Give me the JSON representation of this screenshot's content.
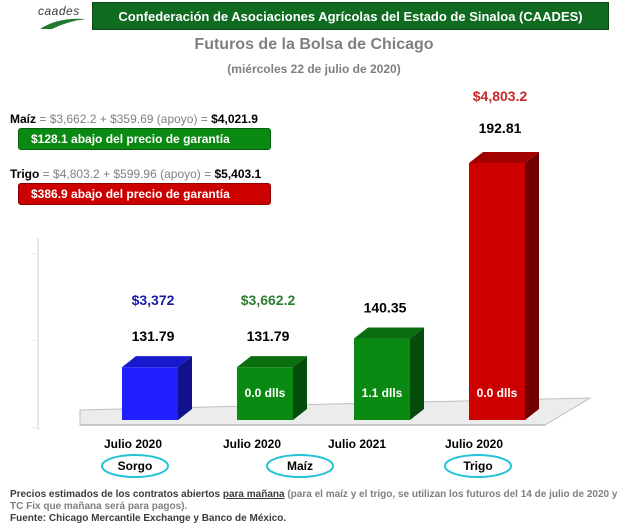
{
  "logo": {
    "text": "caades",
    "icon": "corn-leaf-icon"
  },
  "header": {
    "title": "Confederación de Asociaciones Agrícolas del Estado de Sinaloa (CAADES)"
  },
  "colors": {
    "header_green": "#0f6b1f",
    "maiz_green": "#0a8a12",
    "trigo_red": "#cc0000",
    "sorgo_blue": "#1f1fff"
  },
  "annotations": {
    "maiz_formula": {
      "name": "Maíz",
      "expr": " = $3,662.2 + $359.69 (apoyo) = ",
      "total": "$4,021.9"
    },
    "maiz_badge": "$128.1 abajo del precio de garantía",
    "trigo_formula": {
      "name": "Trigo",
      "expr": " = $4,803.2 + $599.96 (apoyo) = ",
      "total": "$5,403.1"
    },
    "trigo_badge": "$386.9 abajo del precio de garantía"
  },
  "chart_data": {
    "type": "bar",
    "title": "Futuros de la Bolsa de Chicago",
    "subtitle": "(miércoles 22 de julio de 2020)",
    "categories": [
      "Julio 2020",
      "Julio 2020",
      "Julio 2021",
      "Julio 2020"
    ],
    "values": [
      131.79,
      131.79,
      140.35,
      192.81
    ],
    "value_labels": [
      "131.79",
      "131.79",
      "140.35",
      "192.81"
    ],
    "price_labels": [
      "$3,372",
      "$3,662.2",
      "",
      "$4,803.2"
    ],
    "inner_labels": [
      "",
      "0.0 dlls",
      "1.1 dlls",
      "0.0 dlls"
    ],
    "groups": [
      "Sorgo",
      "Maíz",
      "Trigo"
    ],
    "bar_colors": [
      "#1f1fff",
      "#0a8a12",
      "#0a8a12",
      "#cc0000"
    ],
    "price_colors": [
      "#1a1aa8",
      "#2e7d32",
      "#000000",
      "#c62828"
    ],
    "grid": false
  },
  "footer": {
    "line1_a": "Precios estimados de los contratos abiertos ",
    "line1_u": "para mañana",
    "line1_b": " (para el maíz y el trigo, se utilizan los futuros del 14 de julio de 2020 y TC Fix que mañana será para pagos).",
    "source": "Fuente: Chicago Mercantile Exchange y Banco de México."
  }
}
